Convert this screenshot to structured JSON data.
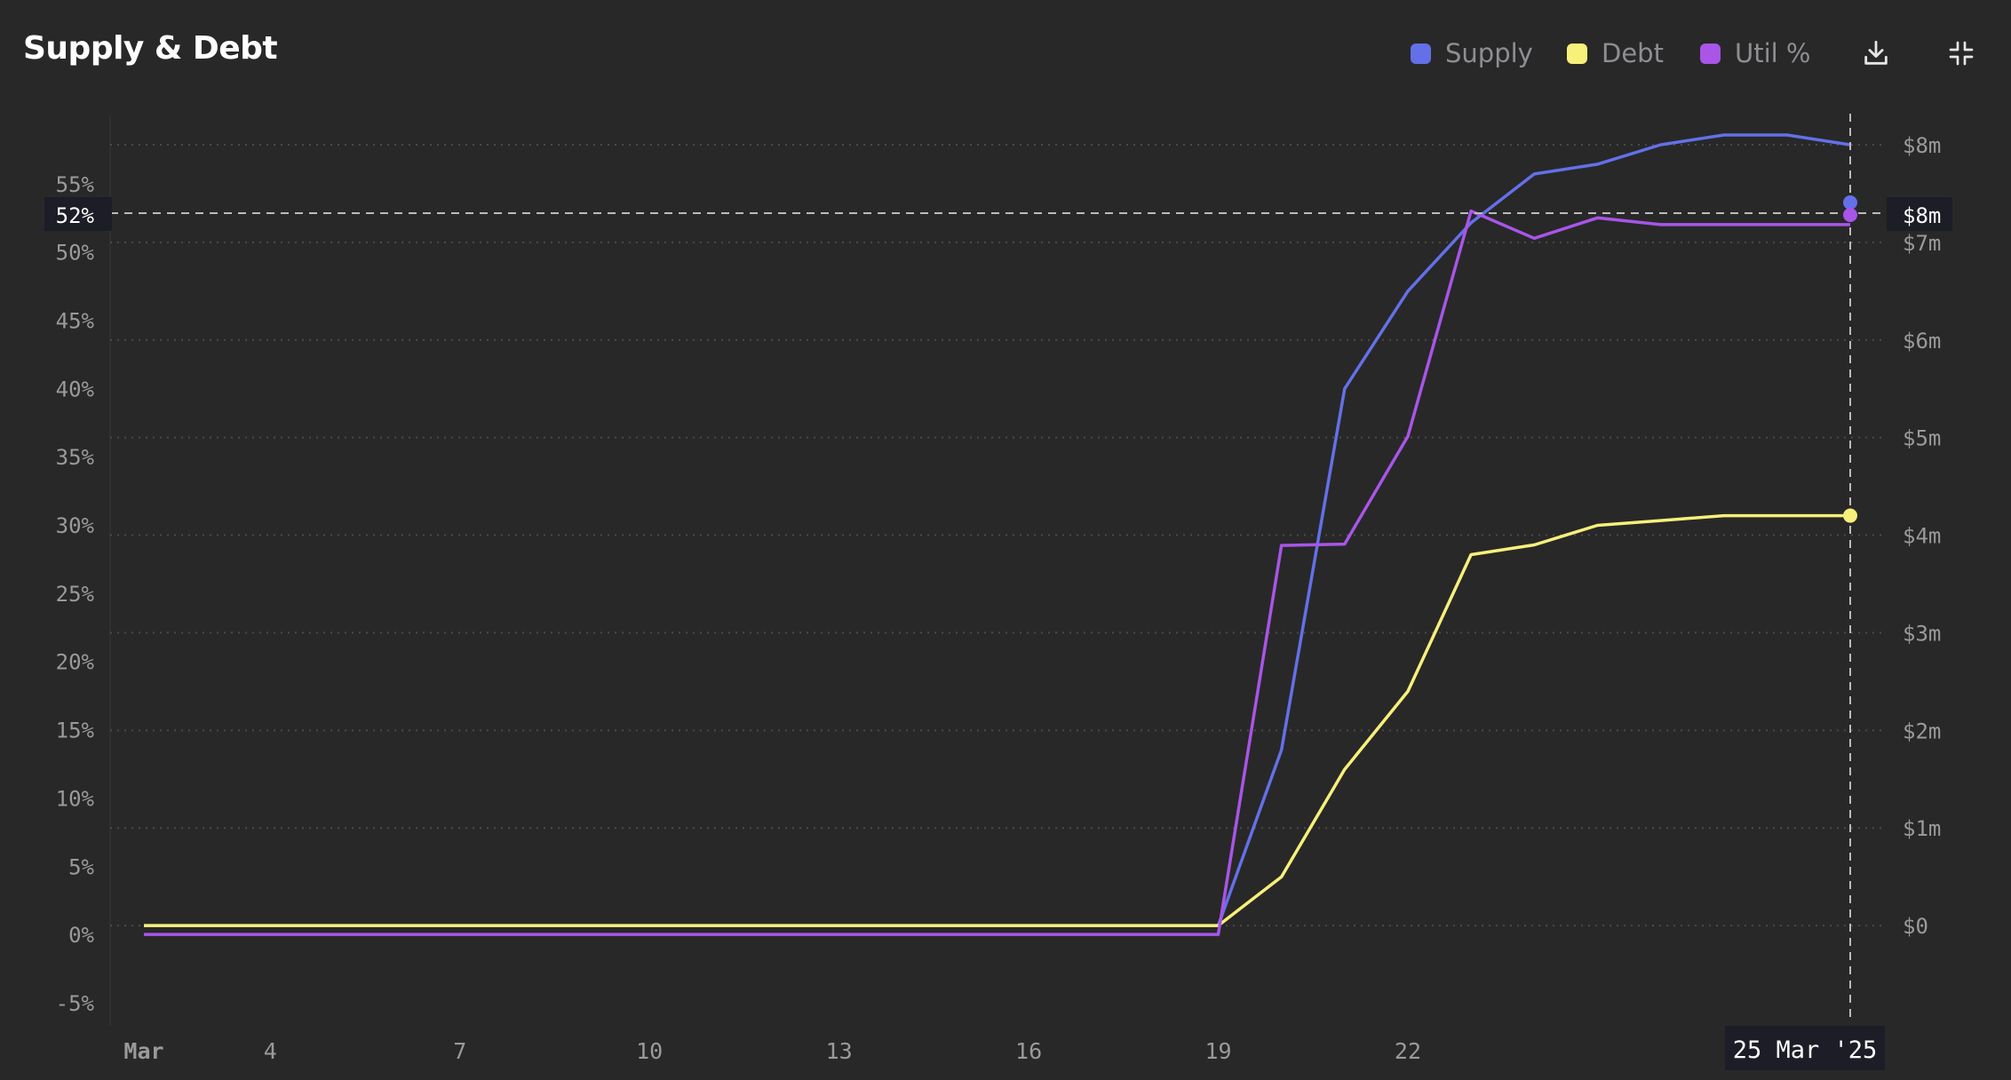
{
  "header": {
    "title": "Supply & Debt",
    "download_icon": "download-icon",
    "collapse_icon": "collapse-icon"
  },
  "legend": [
    {
      "name": "Supply",
      "color": "#6470e8"
    },
    {
      "name": "Debt",
      "color": "#f7f07a"
    },
    {
      "name": "Util %",
      "color": "#a855e8"
    }
  ],
  "cursor": {
    "date_label": "25 Mar '25",
    "left_value_label": "52%",
    "right_value_label": "$8m"
  },
  "chart_data": {
    "type": "line",
    "x": [
      "2025-03-02",
      "2025-03-03",
      "2025-03-04",
      "2025-03-05",
      "2025-03-06",
      "2025-03-07",
      "2025-03-08",
      "2025-03-09",
      "2025-03-10",
      "2025-03-11",
      "2025-03-12",
      "2025-03-13",
      "2025-03-14",
      "2025-03-15",
      "2025-03-16",
      "2025-03-17",
      "2025-03-18",
      "2025-03-19",
      "2025-03-20",
      "2025-03-21",
      "2025-03-22",
      "2025-03-23",
      "2025-03-24",
      "2025-03-25",
      "2025-03-26",
      "2025-03-27",
      "2025-03-28",
      "2025-03-29"
    ],
    "x_tick_labels": [
      "Mar",
      "4",
      "7",
      "10",
      "13",
      "16",
      "19",
      "22"
    ],
    "x_tick_dates": [
      "2025-03-02",
      "2025-03-04",
      "2025-03-07",
      "2025-03-10",
      "2025-03-13",
      "2025-03-16",
      "2025-03-19",
      "2025-03-22"
    ],
    "y_left": {
      "label": "",
      "ticks": [
        -5,
        0,
        5,
        10,
        15,
        20,
        25,
        30,
        35,
        40,
        45,
        50,
        55
      ],
      "tick_labels": [
        "-5%",
        "0%",
        "5%",
        "10%",
        "15%",
        "20%",
        "25%",
        "30%",
        "35%",
        "40%",
        "45%",
        "50%",
        "55%"
      ],
      "range": [
        -6.5,
        60
      ]
    },
    "y_right": {
      "label": "",
      "ticks": [
        0,
        1,
        2,
        3,
        4,
        5,
        6,
        7,
        8
      ],
      "tick_labels": [
        "$0",
        "$1m",
        "$2m",
        "$3m",
        "$4m",
        "$5m",
        "$6m",
        "$7m",
        "$8m"
      ],
      "range": [
        -1,
        8.3
      ]
    },
    "grid": true,
    "legend_position": "top-right",
    "series": [
      {
        "name": "Supply",
        "axis": "right",
        "color": "#6470e8",
        "x": [
          "2025-03-02",
          "2025-03-19",
          "2025-03-20",
          "2025-03-21",
          "2025-03-22",
          "2025-03-23",
          "2025-03-24",
          "2025-03-25",
          "2025-03-26",
          "2025-03-27",
          "2025-03-28",
          "2025-03-29"
        ],
        "values": [
          0,
          0,
          1.8,
          5.5,
          6.5,
          7.2,
          7.7,
          7.8,
          8.0,
          8.1,
          8.1,
          8.0
        ]
      },
      {
        "name": "Debt",
        "axis": "right",
        "color": "#f7f07a",
        "x": [
          "2025-03-02",
          "2025-03-19",
          "2025-03-20",
          "2025-03-21",
          "2025-03-22",
          "2025-03-23",
          "2025-03-24",
          "2025-03-25",
          "2025-03-26",
          "2025-03-27",
          "2025-03-28",
          "2025-03-29"
        ],
        "values": [
          0,
          0,
          0.5,
          1.6,
          2.4,
          3.8,
          3.9,
          4.1,
          4.15,
          4.2,
          4.2,
          4.2
        ]
      },
      {
        "name": "Util %",
        "axis": "left",
        "color": "#a855e8",
        "x": [
          "2025-03-02",
          "2025-03-19",
          "2025-03-20",
          "2025-03-21",
          "2025-03-22",
          "2025-03-23",
          "2025-03-24",
          "2025-03-25",
          "2025-03-26",
          "2025-03-27",
          "2025-03-28",
          "2025-03-29"
        ],
        "values": [
          0,
          0,
          28.5,
          28.6,
          36.5,
          53,
          51,
          52.5,
          52,
          52,
          52,
          52
        ]
      }
    ]
  }
}
